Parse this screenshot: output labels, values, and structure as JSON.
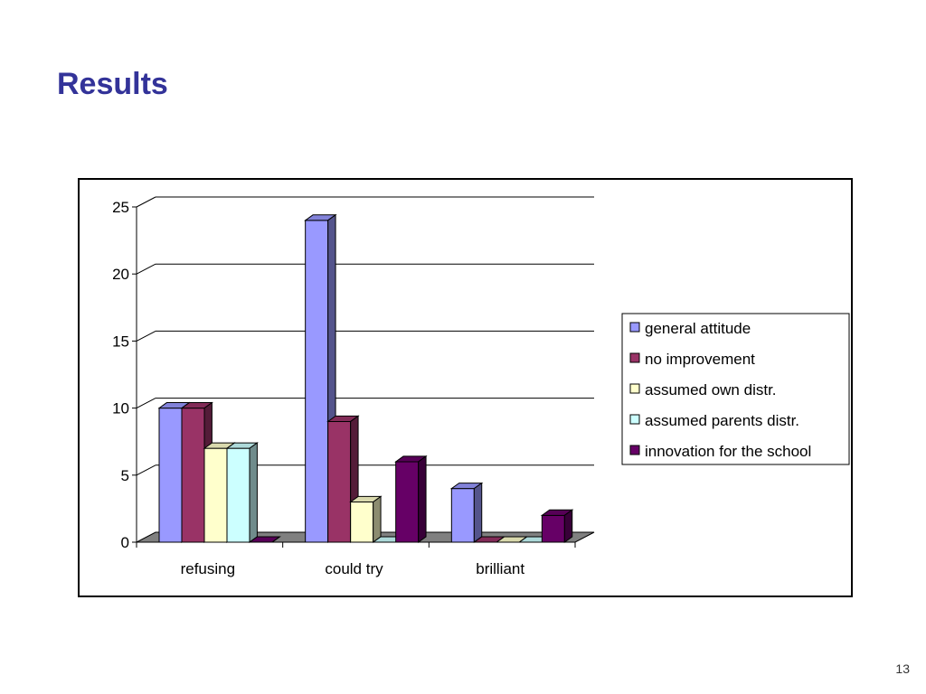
{
  "slide": {
    "title": "Results",
    "page_number": "13"
  },
  "chart_data": {
    "type": "bar",
    "categories": [
      "refusing",
      "could try",
      "brilliant"
    ],
    "series": [
      {
        "name": "general attitude",
        "values": [
          10,
          24,
          4
        ],
        "color": "#9999ff"
      },
      {
        "name": "no improvement",
        "values": [
          10,
          9,
          0
        ],
        "color": "#993366"
      },
      {
        "name": "assumed own distr.",
        "values": [
          7,
          3,
          0
        ],
        "color": "#ffffcc"
      },
      {
        "name": "assumed parents distr.",
        "values": [
          7,
          0,
          0
        ],
        "color": "#ccffff"
      },
      {
        "name": "innovation for the school",
        "values": [
          0,
          6,
          2
        ],
        "color": "#660066"
      }
    ],
    "ylim": [
      0,
      25
    ],
    "yticks": [
      0,
      5,
      10,
      15,
      20,
      25
    ],
    "grid": true,
    "legend": "right",
    "three_d": true
  }
}
